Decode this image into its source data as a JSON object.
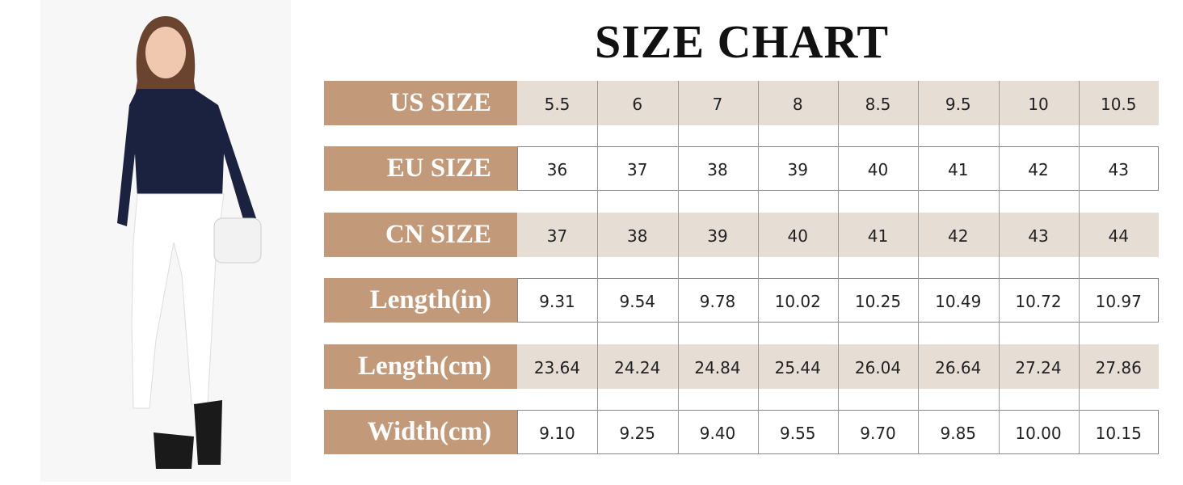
{
  "title": "SIZE CHART",
  "table": {
    "rows": [
      {
        "label": "US SIZE",
        "cells": [
          "5.5",
          "6",
          "7",
          "8",
          "8.5",
          "9.5",
          "10",
          "10.5"
        ]
      },
      {
        "label": "EU SIZE",
        "cells": [
          "36",
          "37",
          "38",
          "39",
          "40",
          "41",
          "42",
          "43"
        ]
      },
      {
        "label": "CN SIZE",
        "cells": [
          "37",
          "38",
          "39",
          "40",
          "41",
          "42",
          "43",
          "44"
        ]
      },
      {
        "label": "Length(in)",
        "cells": [
          "9.31",
          "9.54",
          "9.78",
          "10.02",
          "10.25",
          "10.49",
          "10.72",
          "10.97"
        ]
      },
      {
        "label": "Length(cm)",
        "cells": [
          "23.64",
          "24.24",
          "24.84",
          "25.44",
          "26.04",
          "26.64",
          "27.24",
          "27.86"
        ]
      },
      {
        "label": "Width(cm)",
        "cells": [
          "9.10",
          "9.25",
          "9.40",
          "9.55",
          "9.70",
          "9.85",
          "10.00",
          "10.15"
        ]
      }
    ]
  }
}
